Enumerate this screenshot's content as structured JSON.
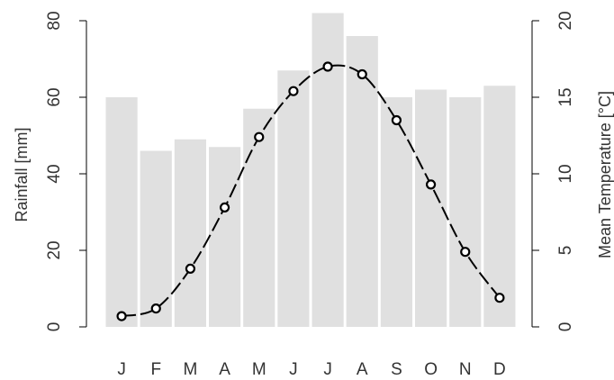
{
  "chart_data": {
    "type": "bar",
    "categories": [
      "J",
      "F",
      "M",
      "A",
      "M",
      "J",
      "J",
      "A",
      "S",
      "O",
      "N",
      "D"
    ],
    "series": [
      {
        "type": "bar",
        "axis": "left",
        "values": [
          60,
          46,
          49,
          47,
          57,
          67,
          82,
          76,
          60,
          62,
          60,
          63
        ],
        "color": "#e0e0e0"
      },
      {
        "type": "line",
        "axis": "right",
        "values": [
          0.7,
          1.2,
          3.8,
          7.8,
          12.4,
          15.4,
          17.0,
          16.5,
          13.5,
          9.3,
          4.9,
          1.9
        ],
        "color": "#000000",
        "line_style": "dashed with circle markers"
      }
    ],
    "ylabel": "Rainfall [mm]",
    "y2label": "Mean Temperature [°C]",
    "ylim": [
      0,
      80
    ],
    "y2lim": [
      0,
      20
    ],
    "yticks": [
      "0",
      "20",
      "40",
      "60",
      "80"
    ],
    "y2ticks": [
      "0",
      "5",
      "10",
      "15",
      "20"
    ],
    "grid": false,
    "legend": "none"
  }
}
